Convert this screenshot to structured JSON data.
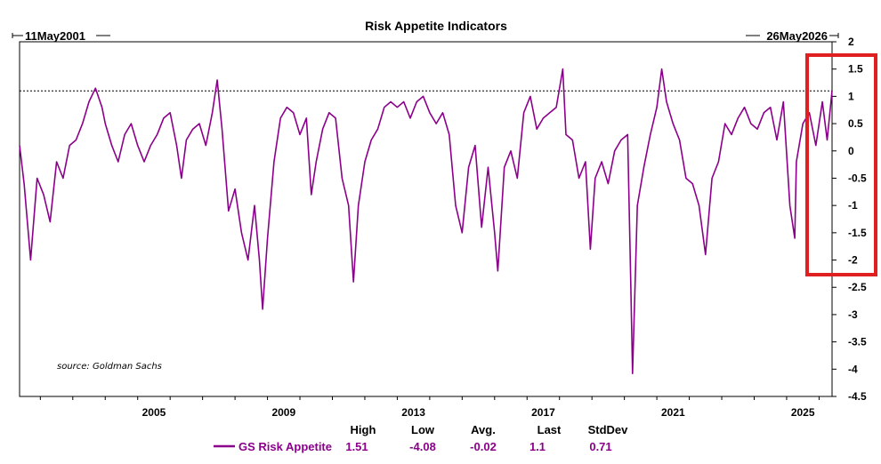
{
  "chart_data": {
    "type": "line",
    "title": "Risk Appetite Indicators",
    "date_range": {
      "start_label": "11May2001",
      "end_label": "26May2026"
    },
    "x_ticks": [
      "2005",
      "2009",
      "2013",
      "2017",
      "2021",
      "2025"
    ],
    "y_ticks": [
      "2",
      "1.5",
      "1",
      "0.5",
      "0",
      "-0.5",
      "-1",
      "-1.5",
      "-2",
      "-2.5",
      "-3",
      "-3.5",
      "-4",
      "-4.5"
    ],
    "ylim": [
      -4.5,
      2
    ],
    "xlim": [
      2001.36,
      2026.4
    ],
    "reference_line": {
      "value": 1.1,
      "style": "dotted"
    },
    "source": "source: Goldman Sachs",
    "series": [
      {
        "name": "GS Risk Appetite",
        "color": "#8B008B",
        "x": [
          2001.36,
          2001.5,
          2001.7,
          2001.9,
          2002.1,
          2002.3,
          2002.5,
          2002.7,
          2002.9,
          2003.1,
          2003.3,
          2003.5,
          2003.7,
          2003.9,
          2004.0,
          2004.2,
          2004.4,
          2004.6,
          2004.8,
          2005.0,
          2005.2,
          2005.4,
          2005.6,
          2005.8,
          2006.0,
          2006.2,
          2006.35,
          2006.5,
          2006.7,
          2006.9,
          2007.1,
          2007.3,
          2007.45,
          2007.6,
          2007.8,
          2008.0,
          2008.2,
          2008.4,
          2008.6,
          2008.75,
          2008.85,
          2009.0,
          2009.2,
          2009.4,
          2009.6,
          2009.8,
          2010.0,
          2010.2,
          2010.35,
          2010.5,
          2010.7,
          2010.9,
          2011.1,
          2011.3,
          2011.5,
          2011.65,
          2011.8,
          2012.0,
          2012.2,
          2012.4,
          2012.6,
          2012.8,
          2013.0,
          2013.2,
          2013.4,
          2013.6,
          2013.8,
          2014.0,
          2014.2,
          2014.4,
          2014.6,
          2014.8,
          2015.0,
          2015.2,
          2015.4,
          2015.6,
          2015.8,
          2016.0,
          2016.1,
          2016.3,
          2016.5,
          2016.7,
          2016.9,
          2017.1,
          2017.3,
          2017.5,
          2017.7,
          2017.9,
          2018.1,
          2018.2,
          2018.4,
          2018.6,
          2018.8,
          2018.95,
          2019.1,
          2019.3,
          2019.5,
          2019.7,
          2019.9,
          2020.1,
          2020.2,
          2020.25,
          2020.4,
          2020.6,
          2020.8,
          2021.0,
          2021.15,
          2021.3,
          2021.5,
          2021.7,
          2021.9,
          2022.1,
          2022.3,
          2022.5,
          2022.7,
          2022.9,
          2023.1,
          2023.3,
          2023.5,
          2023.7,
          2023.9,
          2024.1,
          2024.3,
          2024.5,
          2024.7,
          2024.9,
          2025.1,
          2025.25,
          2025.3,
          2025.5,
          2025.7,
          2025.9,
          2026.1,
          2026.25,
          2026.4
        ],
        "y": [
          0.1,
          -0.6,
          -2.0,
          -0.5,
          -0.8,
          -1.3,
          -0.2,
          -0.5,
          0.1,
          0.2,
          0.5,
          0.9,
          1.15,
          0.8,
          0.5,
          0.1,
          -0.2,
          0.3,
          0.5,
          0.1,
          -0.2,
          0.1,
          0.3,
          0.6,
          0.7,
          0.1,
          -0.5,
          0.2,
          0.4,
          0.5,
          0.1,
          0.7,
          1.3,
          0.4,
          -1.1,
          -0.7,
          -1.5,
          -2.0,
          -1.0,
          -2.0,
          -2.9,
          -1.6,
          -0.2,
          0.6,
          0.8,
          0.7,
          0.3,
          0.6,
          -0.8,
          -0.2,
          0.4,
          0.7,
          0.6,
          -0.5,
          -1.0,
          -2.4,
          -1.0,
          -0.2,
          0.2,
          0.4,
          0.8,
          0.9,
          0.8,
          0.9,
          0.6,
          0.9,
          1.0,
          0.7,
          0.5,
          0.7,
          0.3,
          -1.0,
          -1.5,
          -0.3,
          0.1,
          -1.4,
          -0.3,
          -1.5,
          -2.2,
          -0.3,
          0.0,
          -0.5,
          0.7,
          1.0,
          0.4,
          0.6,
          0.7,
          0.8,
          1.5,
          0.3,
          0.2,
          -0.5,
          -0.2,
          -1.8,
          -0.5,
          -0.2,
          -0.6,
          0.0,
          0.2,
          0.3,
          -2.5,
          -4.08,
          -1.0,
          -0.3,
          0.3,
          0.8,
          1.5,
          0.9,
          0.5,
          0.2,
          -0.5,
          -0.6,
          -1.0,
          -1.9,
          -0.5,
          -0.2,
          0.5,
          0.3,
          0.6,
          0.8,
          0.5,
          0.4,
          0.7,
          0.8,
          0.2,
          0.9,
          -1.0,
          -1.6,
          -0.2,
          0.5,
          0.7,
          0.1,
          0.9,
          0.2,
          1.1
        ]
      }
    ]
  },
  "stats": {
    "headers": [
      "High",
      "Low",
      "Avg.",
      "Last",
      "StdDev"
    ],
    "values": [
      "1.51",
      "-4.08",
      "-0.02",
      "1.1",
      "0.71"
    ]
  },
  "highlight": {
    "color": "#e02020"
  }
}
